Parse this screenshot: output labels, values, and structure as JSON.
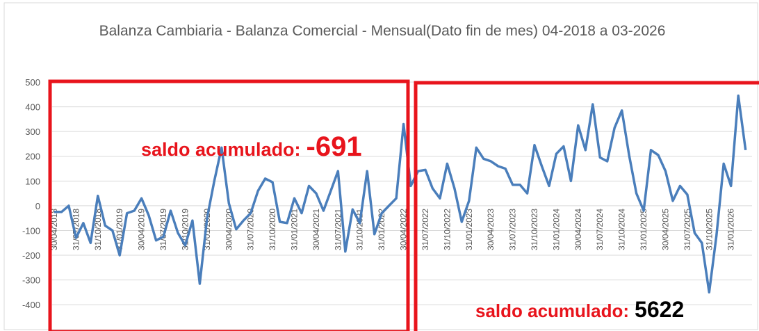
{
  "chart_data": {
    "type": "line",
    "title": "Balanza Cambiaria - Balanza Comercial - Mensual(Dato fin de mes) 04-2018 a 03-2026",
    "categories": [
      "30/04/2018",
      null,
      null,
      "31/07/2018",
      null,
      null,
      "31/10/2018",
      null,
      null,
      "31/01/2019",
      null,
      null,
      "30/04/2019",
      null,
      null,
      "31/07/2019",
      null,
      null,
      "31/10/2019",
      null,
      null,
      "31/01/2020",
      null,
      null,
      "30/04/2020",
      null,
      null,
      "31/07/2020",
      null,
      null,
      "31/10/2020",
      null,
      null,
      "31/01/2021",
      null,
      null,
      "30/04/2021",
      null,
      null,
      "31/07/2021",
      null,
      null,
      "31/10/2021",
      null,
      null,
      "31/01/2022",
      null,
      null,
      "30/04/2022",
      null,
      null,
      "31/07/2022",
      null,
      null,
      "31/10/2022",
      null,
      null,
      "31/01/2023",
      null,
      null,
      "30/04/2023",
      null,
      null,
      "31/07/2023",
      null,
      null,
      "31/10/2023",
      null,
      null,
      "31/01/2024",
      null,
      null,
      "30/04/2024",
      null,
      null,
      "31/07/2024",
      null,
      null,
      "31/10/2024",
      null,
      null,
      "31/01/2025",
      null,
      null,
      "30/04/2025",
      null,
      null,
      "31/07/2025",
      null,
      null,
      "31/10/2025",
      null,
      null,
      "31/01/2026",
      null,
      null
    ],
    "values": [
      -25,
      -25,
      0,
      -130,
      -70,
      -150,
      40,
      -80,
      -100,
      -200,
      -30,
      -20,
      30,
      -40,
      -140,
      -125,
      -20,
      -110,
      -160,
      -60,
      -315,
      -50,
      100,
      235,
      10,
      -95,
      -60,
      -30,
      60,
      110,
      95,
      -65,
      -70,
      30,
      -30,
      80,
      50,
      -20,
      60,
      140,
      -185,
      -15,
      -70,
      140,
      -115,
      -30,
      0,
      30,
      330,
      80,
      140,
      145,
      70,
      30,
      170,
      70,
      -65,
      20,
      235,
      190,
      180,
      160,
      150,
      85,
      85,
      50,
      245,
      160,
      80,
      210,
      240,
      100,
      325,
      225,
      410,
      195,
      180,
      315,
      385,
      205,
      50,
      -20,
      225,
      205,
      140,
      20,
      80,
      45,
      -110,
      -150,
      -350,
      -120,
      170,
      80,
      445,
      225
    ],
    "color": "#4a7ebb",
    "ylim": [
      -450,
      500
    ],
    "yticks": [
      -400,
      -300,
      -200,
      -100,
      0,
      100,
      200,
      300,
      400,
      500
    ],
    "grid": true,
    "annotations": [
      {
        "label": "saldo acumulado:",
        "value": -691
      },
      {
        "label": "saldo acumulado:",
        "value": 5622
      }
    ]
  }
}
